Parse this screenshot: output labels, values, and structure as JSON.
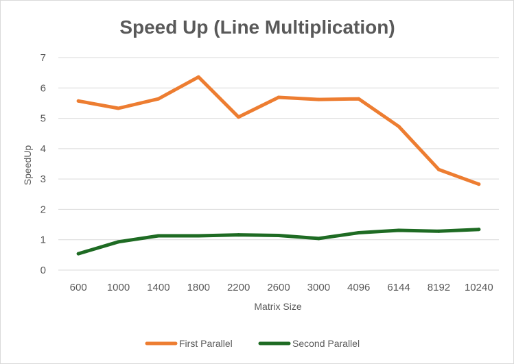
{
  "chart_data": {
    "type": "line",
    "title": "Speed Up (Line Multiplication)",
    "xlabel": "Matrix Size",
    "ylabel": "SpeedUp",
    "categories": [
      "600",
      "1000",
      "1400",
      "1800",
      "2200",
      "2600",
      "3000",
      "4096",
      "6144",
      "8192",
      "10240"
    ],
    "y_ticks": [
      "0",
      "1",
      "2",
      "3",
      "4",
      "5",
      "6",
      "7"
    ],
    "ylim": [
      0,
      7
    ],
    "grid": true,
    "legend_position": "bottom",
    "series": [
      {
        "name": "First Parallel",
        "color": "#ed7d31",
        "values": [
          5.57,
          5.33,
          5.64,
          6.36,
          5.04,
          5.69,
          5.62,
          5.64,
          4.73,
          3.31,
          2.83
        ]
      },
      {
        "name": "Second Parallel",
        "color": "#1e6b23",
        "values": [
          0.54,
          0.93,
          1.13,
          1.13,
          1.16,
          1.14,
          1.04,
          1.23,
          1.31,
          1.28,
          1.34
        ]
      }
    ]
  }
}
